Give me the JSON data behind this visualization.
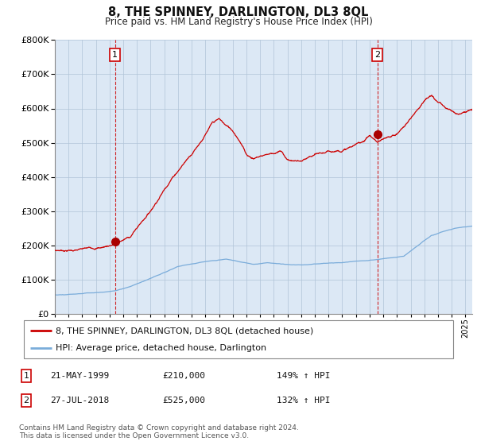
{
  "title": "8, THE SPINNEY, DARLINGTON, DL3 8QL",
  "subtitle": "Price paid vs. HM Land Registry's House Price Index (HPI)",
  "ylim": [
    0,
    800000
  ],
  "yticks": [
    0,
    100000,
    200000,
    300000,
    400000,
    500000,
    600000,
    700000,
    800000
  ],
  "xlim_start": 1995.0,
  "xlim_end": 2025.5,
  "sale1_x": 1999.39,
  "sale1_y": 210000,
  "sale2_x": 2018.57,
  "sale2_y": 525000,
  "line1_color": "#cc0000",
  "line2_color": "#7aacda",
  "vline_color": "#cc0000",
  "marker_color": "#aa0000",
  "label1": "8, THE SPINNEY, DARLINGTON, DL3 8QL (detached house)",
  "label2": "HPI: Average price, detached house, Darlington",
  "table_rows": [
    [
      "1",
      "21-MAY-1999",
      "£210,000",
      "149% ↑ HPI"
    ],
    [
      "2",
      "27-JUL-2018",
      "£525,000",
      "132% ↑ HPI"
    ]
  ],
  "footnote": "Contains HM Land Registry data © Crown copyright and database right 2024.\nThis data is licensed under the Open Government Licence v3.0.",
  "background_color": "#e8f0f8",
  "plot_background": "#dce8f5",
  "grid_color": "#b0c4d8"
}
